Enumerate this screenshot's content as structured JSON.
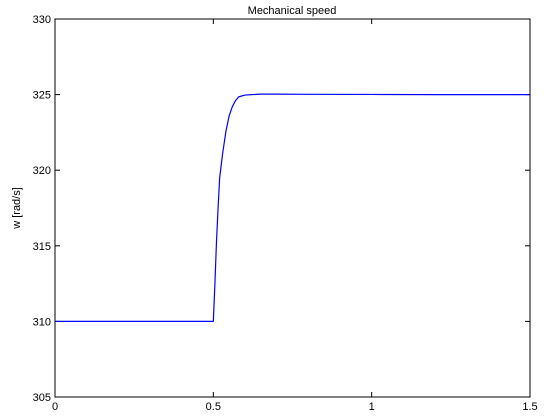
{
  "chart_data": {
    "type": "line",
    "title": "Mechanical speed",
    "xlabel": "",
    "ylabel": "w [rad/s]",
    "xlim": [
      0,
      1.5
    ],
    "ylim": [
      305,
      330
    ],
    "x_ticks": [
      0,
      0.5,
      1,
      1.5
    ],
    "x_tick_labels": [
      "0",
      "0.5",
      "1",
      "1.5"
    ],
    "y_ticks": [
      305,
      310,
      315,
      320,
      325,
      330
    ],
    "y_tick_labels": [
      "305",
      "310",
      "315",
      "320",
      "325",
      "330"
    ],
    "grid": false,
    "legend": "none",
    "series": [
      {
        "color": "#0000ff",
        "x": [
          0,
          0.5,
          0.505,
          0.51,
          0.515,
          0.52,
          0.53,
          0.54,
          0.55,
          0.56,
          0.57,
          0.58,
          0.6,
          0.62,
          0.65,
          0.7,
          0.8,
          1.0,
          1.2,
          1.5
        ],
        "y": [
          310,
          310,
          312.5,
          315.3,
          317.5,
          319.5,
          321.2,
          322.6,
          323.6,
          324.2,
          324.6,
          324.85,
          324.97,
          325.0,
          325.03,
          325.03,
          325.02,
          325.01,
          325.0,
          325.0
        ]
      }
    ]
  }
}
